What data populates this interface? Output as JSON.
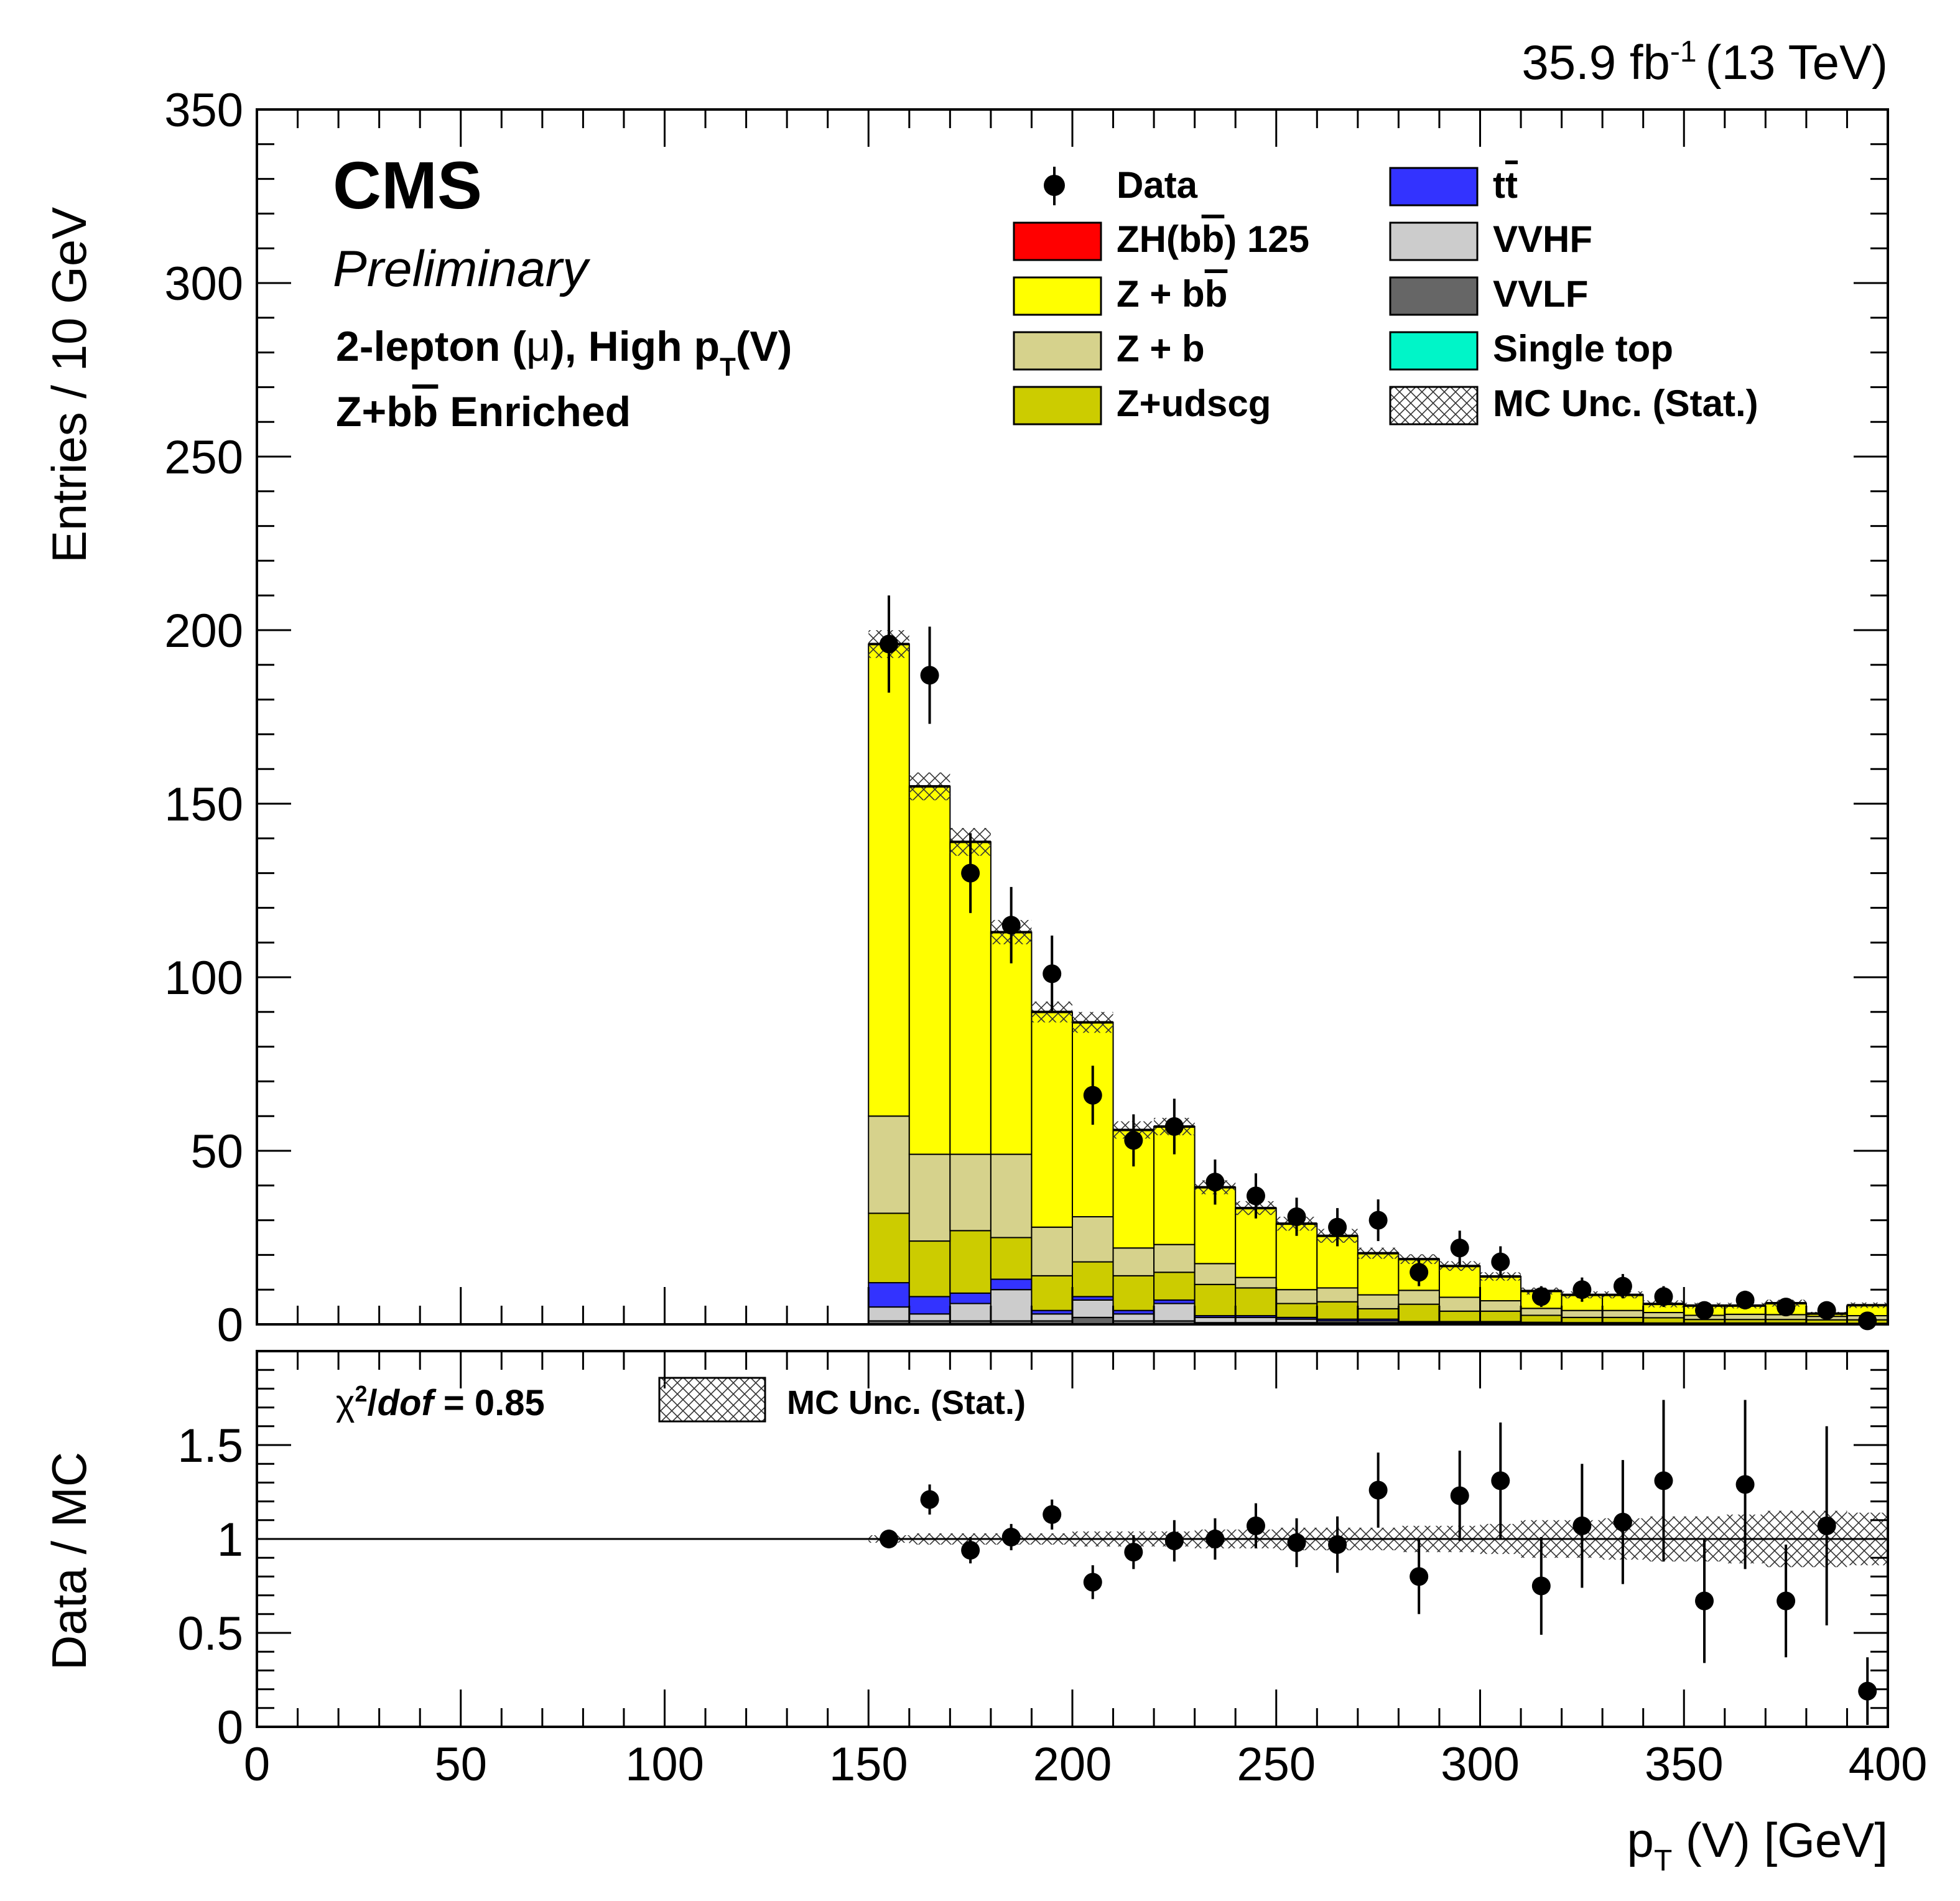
{
  "chart_data": [
    {
      "type": "bar",
      "stacked": true,
      "title": "35.9 fb-1 (13 TeV)",
      "lumi_text": "35.9 fb",
      "lumi_sup": "-1",
      "energy_text": "(13 TeV)",
      "experiment": "CMS",
      "status": "Preliminary",
      "category_line1_a": "2-lepton (",
      "category_line1_mu": "μ",
      "category_line1_b": "), High p",
      "category_line1_sub": "T",
      "category_line1_c": "(V)",
      "category_line2_a": "Z+b",
      "category_line2_bbar": "b",
      "category_line2_b": " Enriched",
      "ylabel": "Entries / 10 GeV",
      "xlabel_p": "p",
      "xlabel_sub": "T",
      "xlabel_rest": " (V) [GeV]",
      "xlim": [
        0,
        400
      ],
      "ylim": [
        0,
        350
      ],
      "xticks": [
        "0",
        "50",
        "100",
        "150",
        "200",
        "250",
        "300",
        "350",
        "400"
      ],
      "yticks": [
        "0",
        "50",
        "100",
        "150",
        "200",
        "250",
        "300",
        "350"
      ],
      "x": [
        155,
        165,
        175,
        185,
        195,
        205,
        215,
        225,
        235,
        245,
        255,
        265,
        275,
        285,
        295,
        305,
        315,
        325,
        335,
        345,
        355,
        365,
        375,
        385,
        395
      ],
      "series": [
        {
          "name": "VVLF",
          "color": "#666666",
          "values": [
            1,
            1,
            1,
            1,
            1,
            2,
            1,
            1,
            0.5,
            0.5,
            0.5,
            0.5,
            0.5,
            0.3,
            0.3,
            0.3,
            0.2,
            0.2,
            0.2,
            0.1,
            0.1,
            0.1,
            0.1,
            0.1,
            0.1
          ]
        },
        {
          "name": "VVHF",
          "color": "#cccccc",
          "values": [
            4,
            2,
            5,
            9,
            2,
            5,
            2,
            5,
            1.5,
            1.5,
            1,
            0.5,
            0.5,
            0.3,
            0.3,
            0.3,
            0.2,
            0.2,
            0.2,
            0.2,
            0.2,
            0.2,
            0.2,
            0.1,
            0.1
          ]
        },
        {
          "name": "Single top",
          "color": "#00f5c8",
          "values": [
            0,
            0,
            0,
            0,
            0,
            0,
            0,
            0,
            0,
            0,
            0,
            0,
            0,
            0,
            0,
            0,
            0,
            0,
            0,
            0,
            0,
            0,
            0,
            0,
            0
          ]
        },
        {
          "name": "tt̄",
          "color": "#3333ff",
          "values": [
            7,
            5,
            3,
            3,
            1,
            1,
            1,
            1,
            0.5,
            0.5,
            0.5,
            0.5,
            0.5,
            0.2,
            0.2,
            0.2,
            0.2,
            0.1,
            0.1,
            0.1,
            0.1,
            0.1,
            0.1,
            0.1,
            0.1
          ]
        },
        {
          "name": "Z+udscg",
          "color": "#cccc00",
          "values": [
            20,
            16,
            18,
            12,
            10,
            10,
            10,
            8,
            9,
            8,
            4,
            5,
            3,
            5,
            3,
            3,
            2,
            1.5,
            1.5,
            1.5,
            1,
            1,
            1,
            1,
            1
          ]
        },
        {
          "name": "Z + b",
          "color": "#d6d28c",
          "values": [
            28,
            25,
            22,
            24,
            14,
            13,
            8,
            8,
            6,
            3,
            4,
            4,
            4,
            4,
            4,
            3,
            2,
            2,
            2,
            1.5,
            1.2,
            1.5,
            1.4,
            1,
            1.2
          ]
        },
        {
          "name": "Z + bb̄",
          "color": "#ffff00",
          "values": [
            136,
            106,
            90,
            64,
            62,
            56,
            34,
            34,
            22,
            20,
            19,
            15,
            12,
            9,
            9,
            7,
            5,
            4.5,
            4.5,
            2.5,
            2.8,
            2.5,
            3.3,
            0.8,
            3
          ]
        },
        {
          "name": "ZH(bb̄) 125",
          "color": "#ff0000",
          "values": [
            0,
            0,
            0,
            0,
            0,
            0,
            0,
            0,
            0,
            0,
            0,
            0,
            0,
            0,
            0,
            0,
            0,
            0,
            0,
            0,
            0,
            0,
            0,
            0,
            0
          ]
        }
      ],
      "mc_stat_unc": [
        4,
        4,
        4,
        3.5,
        3,
        3,
        2.5,
        2.5,
        2,
        2,
        2,
        2,
        1.6,
        1.4,
        1.4,
        1.2,
        1,
        1,
        1,
        1,
        0.8,
        0.8,
        1,
        0.5,
        0.8
      ],
      "data": {
        "name": "Data",
        "values": [
          196,
          187,
          130,
          115,
          101,
          66,
          53,
          57,
          41,
          37,
          31,
          28,
          30,
          15,
          22,
          18,
          8,
          10,
          11,
          8,
          4,
          7,
          5,
          4,
          1
        ],
        "errors": [
          14,
          14,
          11.5,
          11,
          11,
          8.5,
          7.5,
          8,
          6.5,
          6.5,
          5.5,
          5.5,
          6,
          4,
          5,
          4.5,
          3,
          3.5,
          3.5,
          3,
          2.2,
          2.7,
          2.3,
          2.2,
          1
        ]
      },
      "legend": [
        "Data",
        "ZH(bb̄) 125",
        "Z + bb̄",
        "Z + b",
        "Z+udscg",
        "tt̄",
        "VVHF",
        "VVLF",
        "Single top",
        "MC Unc. (Stat.)"
      ],
      "legend_labels": {
        "data": "Data",
        "zh": "ZH(b",
        "zh_bbar": "b",
        "zh_rest": ") 125",
        "zbb": "Z + b",
        "zbb_bbar": "b",
        "zb": "Z + b",
        "zudscg": "Z+udscg",
        "tt": "t",
        "tt_bar": "t",
        "vvhf": "VVHF",
        "vvlf": "VVLF",
        "single_top": "Single top",
        "mc_unc": "MC Unc. (Stat.)"
      },
      "legend_placement": "top-right"
    },
    {
      "type": "scatter",
      "ylabel": "Data / MC",
      "xlim": [
        0,
        400
      ],
      "ylim": [
        0,
        2
      ],
      "yticks": [
        "0",
        "0.5",
        "1",
        "1.5"
      ],
      "chi2_symbol": "χ",
      "chi2_sup": "2",
      "chi2_slash": "/",
      "chi2_dof": "dof",
      "chi2_value": " = 0.85",
      "legend": [
        "MC Unc. (Stat.)"
      ],
      "legend_label": "MC Unc. (Stat.)",
      "reference_line": 1,
      "x": [
        155,
        165,
        175,
        185,
        195,
        205,
        215,
        225,
        235,
        245,
        255,
        265,
        275,
        285,
        295,
        305,
        315,
        325,
        335,
        345,
        355,
        365,
        375,
        385,
        395
      ],
      "values": [
        1.0,
        1.21,
        0.94,
        1.01,
        1.13,
        0.77,
        0.93,
        0.99,
        1.0,
        1.07,
        0.98,
        0.97,
        1.26,
        0.8,
        1.23,
        1.31,
        0.75,
        1.07,
        1.09,
        1.31,
        0.67,
        1.29,
        0.67,
        1.07,
        0.19
      ],
      "errors": [
        0.05,
        0.08,
        0.07,
        0.07,
        0.08,
        0.09,
        0.09,
        0.11,
        0.11,
        0.12,
        0.13,
        0.15,
        0.2,
        0.2,
        0.24,
        0.31,
        0.26,
        0.33,
        0.33,
        0.43,
        0.33,
        0.45,
        0.3,
        0.53,
        0.18
      ],
      "unc_band": [
        0.02,
        0.03,
        0.03,
        0.03,
        0.03,
        0.04,
        0.04,
        0.04,
        0.05,
        0.05,
        0.06,
        0.06,
        0.06,
        0.07,
        0.07,
        0.08,
        0.1,
        0.1,
        0.11,
        0.12,
        0.12,
        0.13,
        0.15,
        0.15,
        0.14
      ]
    }
  ]
}
